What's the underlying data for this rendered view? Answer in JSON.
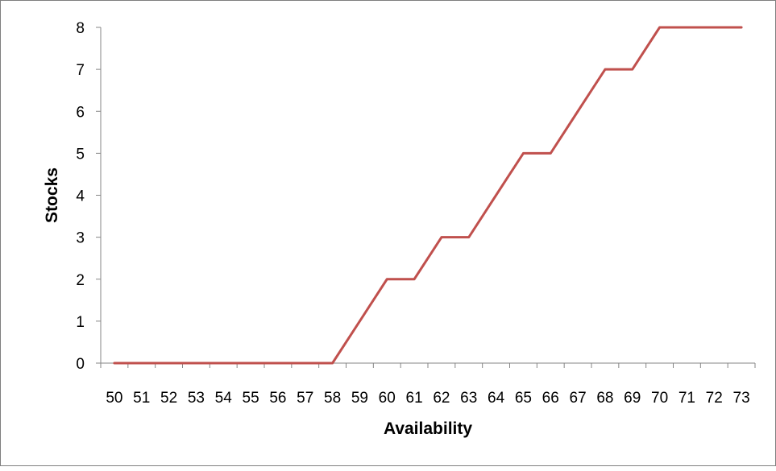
{
  "chart_data": {
    "type": "line",
    "title": "",
    "xlabel": "Availability",
    "ylabel": "Stocks",
    "categories": [
      "50",
      "51",
      "52",
      "53",
      "54",
      "55",
      "56",
      "57",
      "58",
      "59",
      "60",
      "61",
      "62",
      "63",
      "64",
      "65",
      "66",
      "67",
      "68",
      "69",
      "70",
      "71",
      "72",
      "73"
    ],
    "series": [
      {
        "values": [
          0,
          0,
          0,
          0,
          0,
          0,
          0,
          0,
          0,
          1,
          2,
          2,
          3,
          3,
          4,
          5,
          5,
          6,
          7,
          7,
          8,
          8,
          8,
          8
        ],
        "color": "#C0504D"
      }
    ],
    "ylim": [
      0,
      8
    ],
    "yticks": [
      "0",
      "1",
      "2",
      "3",
      "4",
      "5",
      "6",
      "7",
      "8"
    ],
    "grid": false,
    "legend": "none"
  }
}
